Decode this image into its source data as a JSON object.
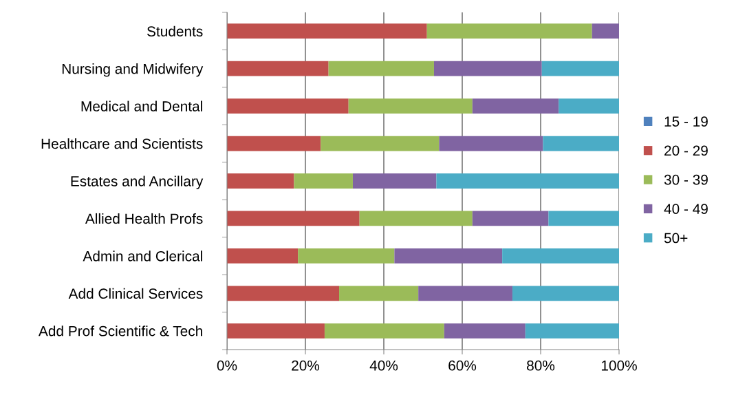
{
  "chart_data": {
    "type": "bar",
    "orientation": "horizontal",
    "stacked": true,
    "categories": [
      "Students",
      "Nursing and Midwifery",
      "Medical and Dental",
      "Healthcare and Scientists",
      "Estates and Ancillary",
      "Allied Health Profs",
      "Admin and Clerical",
      "Add Clinical Services",
      "Add Prof Scientific & Tech"
    ],
    "series": [
      {
        "name": "15 - 19",
        "color": "#4f81bd",
        "values": [
          0,
          0,
          0,
          0,
          0,
          0,
          0,
          0,
          0
        ]
      },
      {
        "name": "20 - 29",
        "color": "#c0504d",
        "values": [
          51.0,
          25.9,
          31.0,
          23.9,
          17.1,
          33.8,
          18.1,
          28.6,
          24.9
        ]
      },
      {
        "name": "30 - 39",
        "color": "#9bbb59",
        "values": [
          42.1,
          26.9,
          31.6,
          30.2,
          15.0,
          28.8,
          24.6,
          20.2,
          30.5
        ]
      },
      {
        "name": "40 - 49",
        "color": "#8064a2",
        "values": [
          6.9,
          27.5,
          22.0,
          26.5,
          21.3,
          19.4,
          27.5,
          24.0,
          20.7
        ]
      },
      {
        "name": "50+",
        "color": "#4bacc6",
        "values": [
          0,
          19.7,
          15.4,
          19.4,
          46.6,
          18.0,
          29.8,
          27.2,
          23.9
        ]
      }
    ],
    "xlim": [
      0,
      100
    ],
    "xticks": [
      {
        "value": 0,
        "label": "0%"
      },
      {
        "value": 20,
        "label": "20%"
      },
      {
        "value": 40,
        "label": "40%"
      },
      {
        "value": 60,
        "label": "60%"
      },
      {
        "value": 80,
        "label": "80%"
      },
      {
        "value": 100,
        "label": "100%"
      }
    ],
    "grid": "x",
    "legend": "right"
  }
}
